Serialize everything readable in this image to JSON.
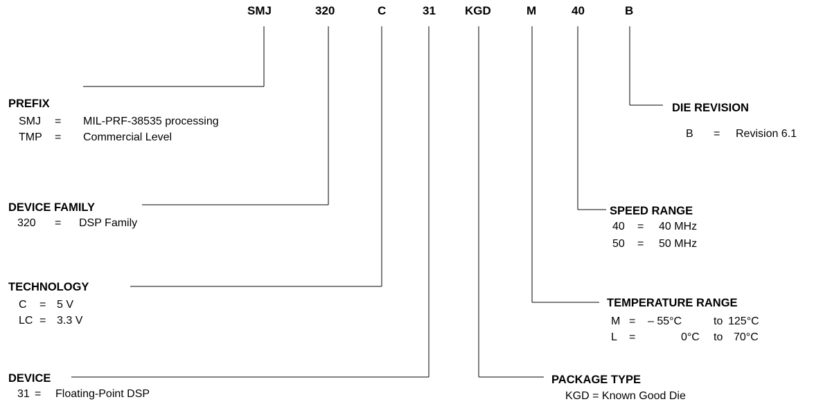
{
  "part_number": {
    "prefix": "SMJ",
    "family": "320",
    "technology": "C",
    "device": "31",
    "package": "KGD",
    "temperature": "M",
    "speed": "40",
    "revision": "B"
  },
  "prefix": {
    "title": "PREFIX",
    "entries": [
      {
        "code": "SMJ",
        "eq": "=",
        "desc": "MIL-PRF-38535 processing"
      },
      {
        "code": "TMP",
        "eq": "=",
        "desc": "Commercial Level"
      }
    ]
  },
  "device_family": {
    "title": "DEVICE FAMILY",
    "entries": [
      {
        "code": "320",
        "eq": "=",
        "desc": "DSP Family"
      }
    ]
  },
  "technology": {
    "title": "TECHNOLOGY",
    "entries": [
      {
        "code": "C",
        "eq": "=",
        "desc": "5 V"
      },
      {
        "code": "LC",
        "eq": "=",
        "desc": "3.3 V"
      }
    ]
  },
  "device": {
    "title": "DEVICE",
    "entries": [
      {
        "code": "31",
        "eq": "=",
        "desc": "Floating-Point DSP"
      }
    ]
  },
  "die_revision": {
    "title": "DIE REVISION",
    "entries": [
      {
        "code": "B",
        "eq": "=",
        "desc": "Revision 6.1"
      }
    ]
  },
  "speed_range": {
    "title": "SPEED RANGE",
    "entries": [
      {
        "code": "40",
        "eq": "=",
        "desc": "40 MHz"
      },
      {
        "code": "50",
        "eq": "=",
        "desc": "50 MHz"
      }
    ]
  },
  "temperature_range": {
    "title": "TEMPERATURE RANGE",
    "entries": [
      {
        "code": "M",
        "eq": "=",
        "min": "– 55°C",
        "to": "to",
        "max": "125°C"
      },
      {
        "code": "L",
        "eq": "=",
        "min": "0°C",
        "to": "to",
        "max": "70°C"
      }
    ]
  },
  "package_type": {
    "title": "PACKAGE TYPE",
    "entries": [
      {
        "text": "KGD = Known Good Die"
      }
    ]
  }
}
